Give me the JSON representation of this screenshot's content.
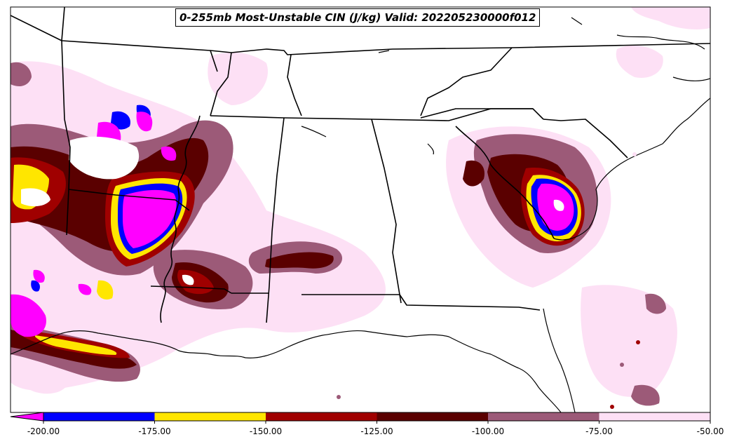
{
  "title": "0-255mb Most-Unstable CIN (J/kg) Valid: 202205230000f012",
  "colorbar": {
    "ticks": [
      "-200.00",
      "-175.00",
      "-150.00",
      "-125.00",
      "-100.00",
      "-75.00",
      "-50.00"
    ],
    "bins": [
      {
        "from": -200,
        "to": -175,
        "color": "#0000ff"
      },
      {
        "from": -175,
        "to": -150,
        "color": "#ffe600"
      },
      {
        "from": -150,
        "to": -125,
        "color": "#a00000"
      },
      {
        "from": -125,
        "to": -100,
        "color": "#5a0000"
      },
      {
        "from": -100,
        "to": -75,
        "color": "#9c5a78"
      },
      {
        "from": -75,
        "to": -50,
        "color": "#fde0f5"
      }
    ],
    "under_color": "#ff00ff"
  },
  "region": "Southeastern United States"
}
